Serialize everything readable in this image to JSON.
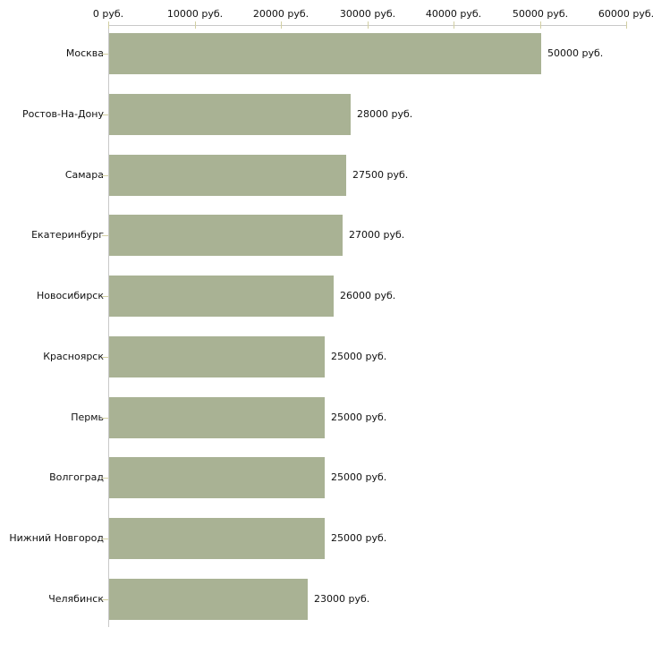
{
  "chart_data": {
    "type": "bar",
    "orientation": "horizontal",
    "categories": [
      "Москва",
      "Ростов-На-Дону",
      "Самара",
      "Екатеринбург",
      "Новосибирск",
      "Красноярск",
      "Пермь",
      "Волгоград",
      "Нижний Новгород",
      "Челябинск"
    ],
    "values": [
      50000,
      28000,
      27500,
      27000,
      26000,
      25000,
      25000,
      25000,
      25000,
      23000
    ],
    "value_labels": [
      "50000 руб.",
      "28000 руб.",
      "27500 руб.",
      "27000 руб.",
      "26000 руб.",
      "25000 руб.",
      "25000 руб.",
      "25000 руб.",
      "25000 руб.",
      "23000 руб."
    ],
    "unit": "руб.",
    "x_axis": {
      "position": "top",
      "tick_labels": [
        "0 руб.",
        "10000 руб.",
        "20000 руб.",
        "30000 руб.",
        "40000 руб.",
        "50000 руб.",
        "60000 руб."
      ],
      "tick_values": [
        0,
        10000,
        20000,
        30000,
        40000,
        50000,
        60000
      ],
      "min": 0,
      "max": 60000
    },
    "grid": false,
    "legend": "none",
    "title": "",
    "colors": {
      "bar": "#a9b294",
      "axis_line": "#c8c8c8",
      "tick": "#d2cfa2",
      "text": "#111111",
      "background": "#ffffff"
    }
  }
}
